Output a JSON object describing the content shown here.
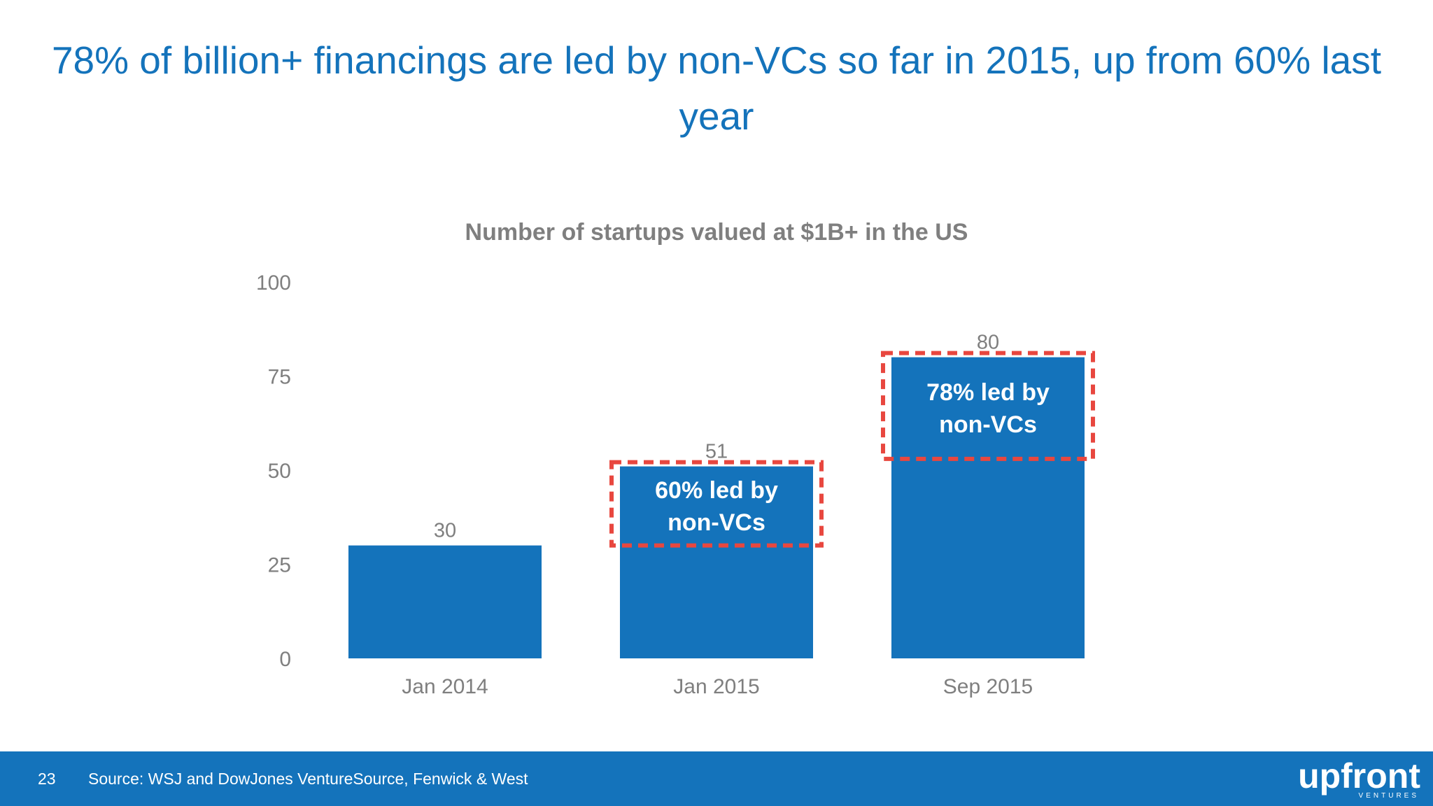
{
  "slide": {
    "title": "78% of billion+ financings are led by non-VCs so far in 2015, up from 60% last year",
    "page_number": "23",
    "source": "Source: WSJ and DowJones VentureSource, Fenwick & West",
    "logo": {
      "word": "upfront",
      "sub": "VENTURES"
    }
  },
  "colors": {
    "accent": "#1473bb",
    "bar": "#1473bb",
    "highlight_border": "#e8473f",
    "axis_text": "#7f7f7f",
    "chart_title": "#7f7f7f",
    "footer_bg": "#1473bb"
  },
  "chart_data": {
    "type": "bar",
    "title": "Number of startups valued at $1B+ in the US",
    "categories": [
      "Jan 2014",
      "Jan 2015",
      "Sep 2015"
    ],
    "values": [
      30,
      51,
      80
    ],
    "data_labels": [
      "30",
      "51",
      "80"
    ],
    "ylim": [
      0,
      100
    ],
    "yticks": [
      0,
      25,
      50,
      75,
      100
    ],
    "ytick_labels": [
      "0",
      "25",
      "50",
      "75",
      "100"
    ],
    "xlabel": "",
    "ylabel": "",
    "grid": false,
    "legend": "none",
    "annotations": [
      {
        "category": "Jan 2015",
        "line1": "60% led by",
        "line2": "non-VCs",
        "from": 30,
        "to": 51,
        "style": "red dashed box"
      },
      {
        "category": "Sep 2015",
        "line1": "78% led by",
        "line2": "non-VCs",
        "from": 53,
        "to": 80,
        "style": "red dashed box"
      }
    ]
  }
}
